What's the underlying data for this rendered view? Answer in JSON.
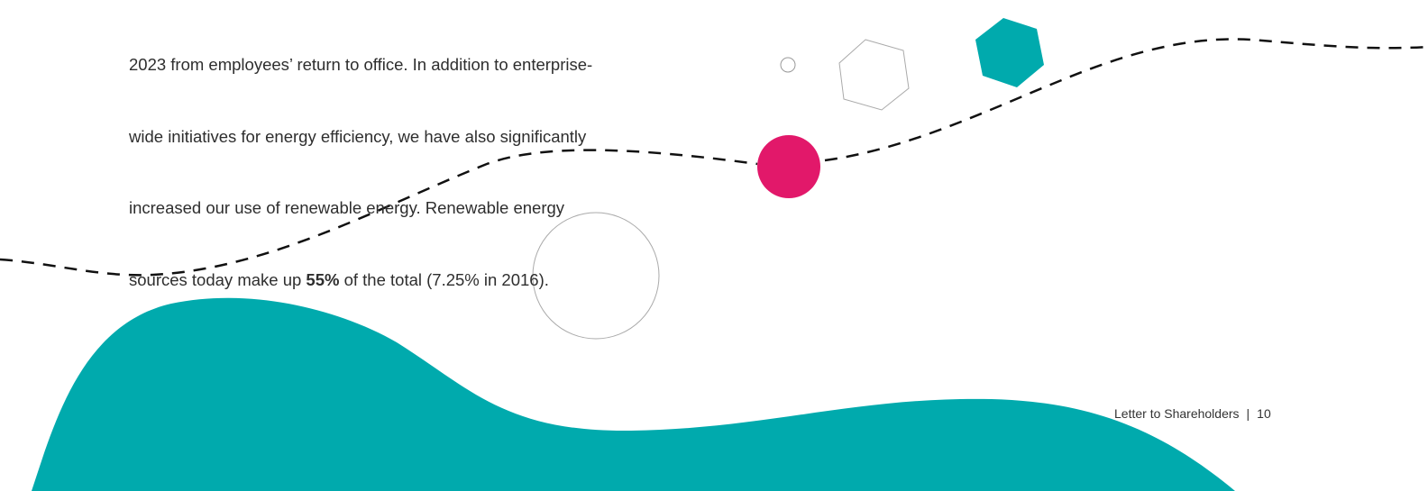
{
  "paragraph": {
    "lines": [
      "2023 from employees’ return to office. In addition to enterprise-",
      "wide initiatives for energy efficiency, we have also significantly",
      "increased our use of renewable energy. Renewable energy"
    ],
    "last_line": {
      "before": "sources today make up ",
      "bold": "55%",
      "after": " of the total (7.25% in 2016)."
    }
  },
  "footer": {
    "section": "Letter to Shareholders",
    "separator": "|",
    "page": "10"
  }
}
